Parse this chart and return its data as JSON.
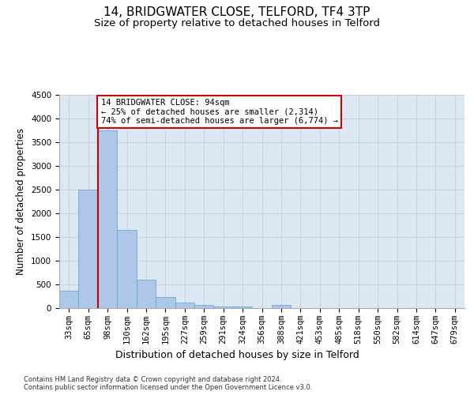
{
  "title1": "14, BRIDGWATER CLOSE, TELFORD, TF4 3TP",
  "title2": "Size of property relative to detached houses in Telford",
  "xlabel": "Distribution of detached houses by size in Telford",
  "ylabel": "Number of detached properties",
  "categories": [
    "33sqm",
    "65sqm",
    "98sqm",
    "130sqm",
    "162sqm",
    "195sqm",
    "227sqm",
    "259sqm",
    "291sqm",
    "324sqm",
    "356sqm",
    "388sqm",
    "421sqm",
    "453sqm",
    "485sqm",
    "518sqm",
    "550sqm",
    "582sqm",
    "614sqm",
    "647sqm",
    "679sqm"
  ],
  "values": [
    375,
    2500,
    3750,
    1650,
    600,
    230,
    110,
    60,
    40,
    40,
    0,
    60,
    0,
    0,
    0,
    0,
    0,
    0,
    0,
    0,
    0
  ],
  "bar_color": "#aec6e8",
  "bar_edge_color": "#5a9fd4",
  "grid_color": "#cccccc",
  "background_color": "#dde8f5",
  "annotation_text": "14 BRIDGWATER CLOSE: 94sqm\n← 25% of detached houses are smaller (2,314)\n74% of semi-detached houses are larger (6,774) →",
  "vline_x": 1.5,
  "annotation_box_color": "#cc0000",
  "ylim": [
    0,
    4500
  ],
  "yticks": [
    0,
    500,
    1000,
    1500,
    2000,
    2500,
    3000,
    3500,
    4000,
    4500
  ],
  "footer": "Contains HM Land Registry data © Crown copyright and database right 2024.\nContains public sector information licensed under the Open Government Licence v3.0.",
  "title1_fontsize": 11,
  "title2_fontsize": 9.5,
  "xlabel_fontsize": 9,
  "ylabel_fontsize": 8.5,
  "tick_fontsize": 7.5
}
